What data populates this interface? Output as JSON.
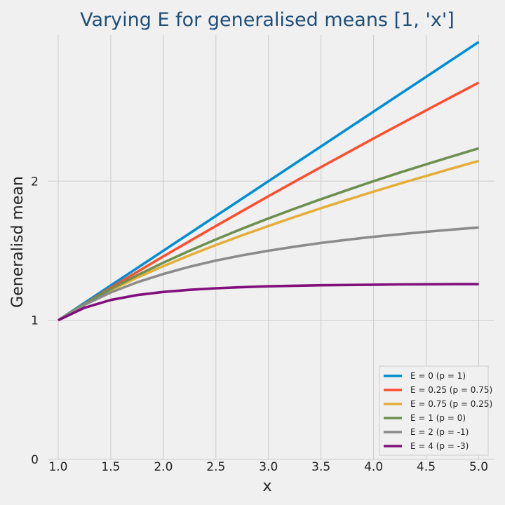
{
  "chart_data": {
    "type": "line",
    "title": "Varying E for generalised means [1, 'x']",
    "xlabel": "x",
    "ylabel": "Generalisd mean",
    "xlim": [
      0.9,
      5.15
    ],
    "ylim": [
      0,
      3.05
    ],
    "xticks": [
      1.0,
      1.5,
      2.0,
      2.5,
      3.0,
      3.5,
      4.0,
      4.5,
      5.0
    ],
    "xtick_labels": [
      "1.0",
      "1.5",
      "2.0",
      "2.5",
      "3.0",
      "3.5",
      "4.0",
      "4.5",
      "5.0"
    ],
    "yticks": [
      0,
      1,
      2
    ],
    "ytick_labels": [
      "0",
      "1",
      "2"
    ],
    "grid": true,
    "legend_position": "lower-right",
    "x": [
      1.0,
      1.25,
      1.5,
      1.75,
      2.0,
      2.25,
      2.5,
      2.75,
      3.0,
      3.25,
      3.5,
      3.75,
      4.0,
      4.25,
      4.5,
      4.75,
      5.0
    ],
    "series": [
      {
        "name": "E = 0 (p = 1)",
        "color": "#008fd5",
        "values": [
          1.0,
          1.125,
          1.25,
          1.375,
          1.5,
          1.625,
          1.75,
          1.875,
          2.0,
          2.125,
          2.25,
          2.375,
          2.5,
          2.625,
          2.75,
          2.875,
          3.0
        ]
      },
      {
        "name": "E = 0.25 (p = 0.75)",
        "color": "#fc4f30",
        "values": [
          1.0,
          1.118,
          1.234,
          1.347,
          1.459,
          1.569,
          1.678,
          1.785,
          1.892,
          1.997,
          2.101,
          2.204,
          2.307,
          2.408,
          2.509,
          2.609,
          2.708
        ]
      },
      {
        "name": "E = 0.75 (p = 0.25)",
        "color": "#e5ae38",
        "values": [
          1.0,
          1.118,
          1.216,
          1.306,
          1.389,
          1.467,
          1.541,
          1.611,
          1.678,
          1.743,
          1.806,
          1.866,
          1.925,
          1.982,
          2.037,
          2.092,
          2.145
        ]
      },
      {
        "name": "E = 1 (p = 0)",
        "color": "#6d904f",
        "values": [
          1.0,
          1.118,
          1.225,
          1.323,
          1.414,
          1.5,
          1.581,
          1.658,
          1.732,
          1.803,
          1.871,
          1.936,
          2.0,
          2.062,
          2.121,
          2.179,
          2.236
        ]
      },
      {
        "name": "E = 2 (p = -1)",
        "color": "#8b8b8b",
        "values": [
          1.0,
          1.111,
          1.2,
          1.273,
          1.333,
          1.385,
          1.429,
          1.467,
          1.5,
          1.529,
          1.556,
          1.579,
          1.6,
          1.619,
          1.636,
          1.652,
          1.667
        ]
      },
      {
        "name": "E = 4 (p = -3)",
        "color": "#810f7c",
        "values": [
          1.0,
          1.09,
          1.146,
          1.181,
          1.204,
          1.219,
          1.23,
          1.238,
          1.244,
          1.248,
          1.252,
          1.254,
          1.256,
          1.258,
          1.259,
          1.26,
          1.26
        ]
      }
    ]
  }
}
